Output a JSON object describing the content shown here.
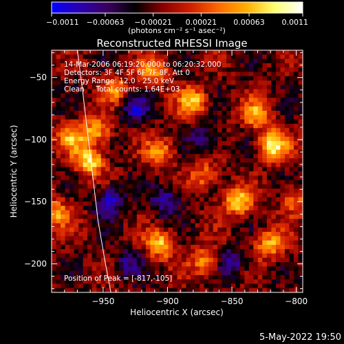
{
  "chart_data": {
    "type": "heatmap",
    "title": "Reconstructed RHESSI Image",
    "xlabel": "Heliocentric X (arcsec)",
    "ylabel": "Heliocentric Y (arcsec)",
    "xlim": [
      -990,
      -795
    ],
    "ylim": [
      -223,
      -28
    ],
    "x_ticks": [
      -950,
      -900,
      -850,
      -800
    ],
    "y_ticks": [
      -50,
      -100,
      -150,
      -200
    ],
    "x_tick_labels": [
      "−950",
      "−900",
      "−850",
      "−800"
    ],
    "y_tick_labels": [
      "−50",
      "−100",
      "−150",
      "−200"
    ],
    "colorbar": {
      "range": [
        -0.0011,
        0.0011
      ],
      "ticks": [
        -0.0011,
        -0.00063,
        -0.00021,
        0.00021,
        0.00063,
        0.0011
      ],
      "tick_labels": [
        "−0.0011",
        "−0.00063",
        "−0.00021",
        "0.00021",
        "0.00063",
        "0.0011"
      ],
      "unit": "(photons cm⁻² s⁻¹ asec⁻²)",
      "colors": [
        "#0000ff",
        "#2a00b0",
        "#3a0060",
        "#000000",
        "#8a0000",
        "#d02000",
        "#ff6a00",
        "#ffb000",
        "#ffff70",
        "#ffffff"
      ]
    },
    "annotations": [
      "14-Mar-2006 06:19:20.000 to 06:20:32.000",
      "Detectors: 3F 4F 5F 6F 7F 8F, Att 0",
      "Energy Range: 12.0 - 25.0 keV",
      "Clean     Total counts: 1.64E+03",
      "Position of Peak = [-817,-105]"
    ],
    "peak": {
      "x": -817,
      "y": -105
    },
    "limb_curve": [
      [
        -970,
        -28
      ],
      [
        -966,
        -60
      ],
      [
        -962,
        -95
      ],
      [
        -958,
        -130
      ],
      [
        -954,
        -165
      ],
      [
        -949,
        -195
      ],
      [
        -944,
        -223
      ]
    ],
    "hot_spots": [
      {
        "x": -955,
        "y": -93,
        "v": 0.0008
      },
      {
        "x": -960,
        "y": -118,
        "v": 0.001
      },
      {
        "x": -975,
        "y": -100,
        "v": 0.0007
      },
      {
        "x": -880,
        "y": -70,
        "v": 0.0009
      },
      {
        "x": -817,
        "y": -105,
        "v": 0.0011
      },
      {
        "x": -830,
        "y": -80,
        "v": 0.0008
      },
      {
        "x": -845,
        "y": -150,
        "v": 0.001
      },
      {
        "x": -905,
        "y": -110,
        "v": 0.0007
      },
      {
        "x": -940,
        "y": -60,
        "v": 0.0006
      },
      {
        "x": -905,
        "y": -185,
        "v": 0.0009
      },
      {
        "x": -820,
        "y": -185,
        "v": 0.0008
      },
      {
        "x": -870,
        "y": -200,
        "v": 0.0007
      },
      {
        "x": -985,
        "y": -160,
        "v": 0.0007
      },
      {
        "x": -800,
        "y": -150,
        "v": 0.0006
      },
      {
        "x": -910,
        "y": -45,
        "v": 0.0007
      },
      {
        "x": -870,
        "y": -130,
        "v": 0.0006
      }
    ],
    "cold_spots": [
      {
        "x": -945,
        "y": -150,
        "v": -0.0008
      },
      {
        "x": -900,
        "y": -150,
        "v": -0.0006
      },
      {
        "x": -925,
        "y": -75,
        "v": -0.0006
      },
      {
        "x": -870,
        "y": -100,
        "v": -0.0005
      },
      {
        "x": -850,
        "y": -200,
        "v": -0.0006
      },
      {
        "x": -930,
        "y": -200,
        "v": -0.0005
      }
    ]
  },
  "footer": {
    "date": "5-May-2022 19:50"
  }
}
